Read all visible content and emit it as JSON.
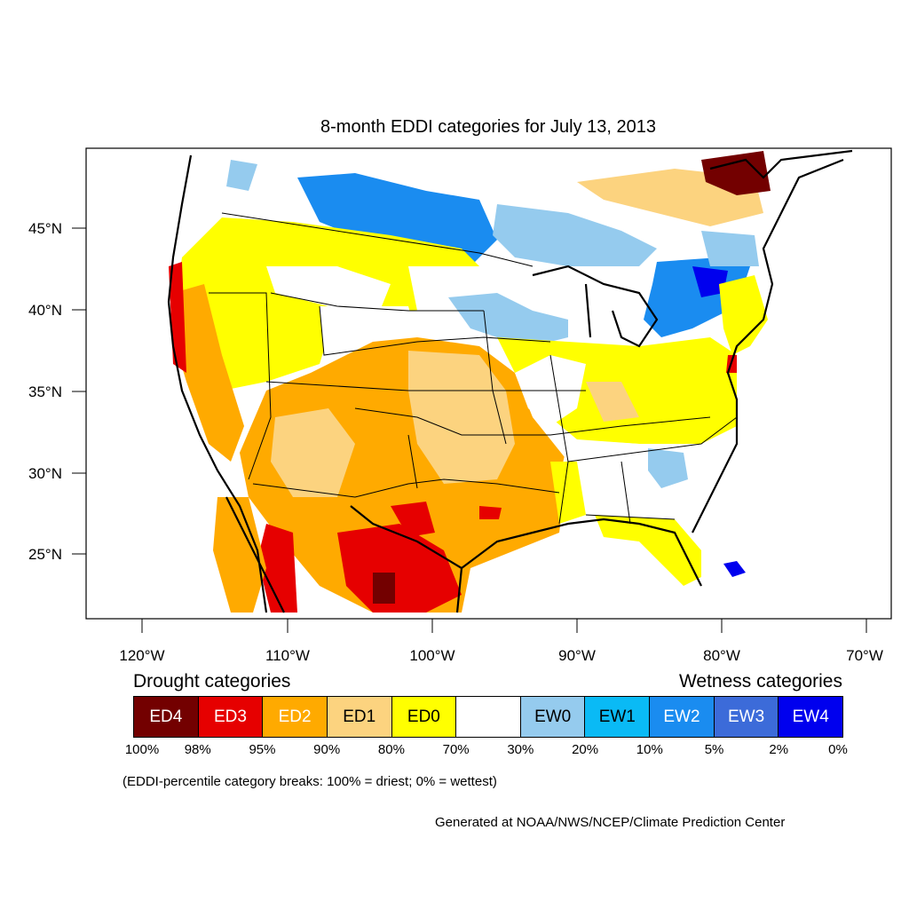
{
  "map": {
    "title": "8-month EDDI categories for July 13, 2013",
    "lat_labels": [
      "45°N",
      "40°N",
      "35°N",
      "30°N",
      "25°N"
    ],
    "lon_labels": [
      "120°W",
      "110°W",
      "100°W",
      "90°W",
      "80°W",
      "70°W"
    ]
  },
  "legend": {
    "drought_heading": "Drought categories",
    "wetness_heading": "Wetness categories",
    "categories": [
      {
        "label": "ED4",
        "color": "#730000",
        "text_color": "#ffffff"
      },
      {
        "label": "ED3",
        "color": "#e60000",
        "text_color": "#ffffff"
      },
      {
        "label": "ED2",
        "color": "#ffaa00",
        "text_color": "#ffffff"
      },
      {
        "label": "ED1",
        "color": "#fcd37f",
        "text_color": "#000000"
      },
      {
        "label": "ED0",
        "color": "#ffff00",
        "text_color": "#000000"
      },
      {
        "label": "",
        "color": "#ffffff",
        "text_color": "#000000"
      },
      {
        "label": "EW0",
        "color": "#95cbee",
        "text_color": "#000000"
      },
      {
        "label": "EW1",
        "color": "#0abaf5",
        "text_color": "#000000"
      },
      {
        "label": "EW2",
        "color": "#1a8cf0",
        "text_color": "#ffffff"
      },
      {
        "label": "EW3",
        "color": "#3c6bd9",
        "text_color": "#ffffff"
      },
      {
        "label": "EW4",
        "color": "#0000ee",
        "text_color": "#ffffff"
      }
    ],
    "breaks": [
      "100%",
      "98%",
      "95%",
      "90%",
      "80%",
      "70%",
      "30%",
      "20%",
      "10%",
      "5%",
      "2%",
      "0%"
    ],
    "note": "(EDDI-percentile category breaks: 100% = driest; 0% = wettest)"
  },
  "credit": "Generated at NOAA/NWS/NCEP/Climate Prediction Center"
}
